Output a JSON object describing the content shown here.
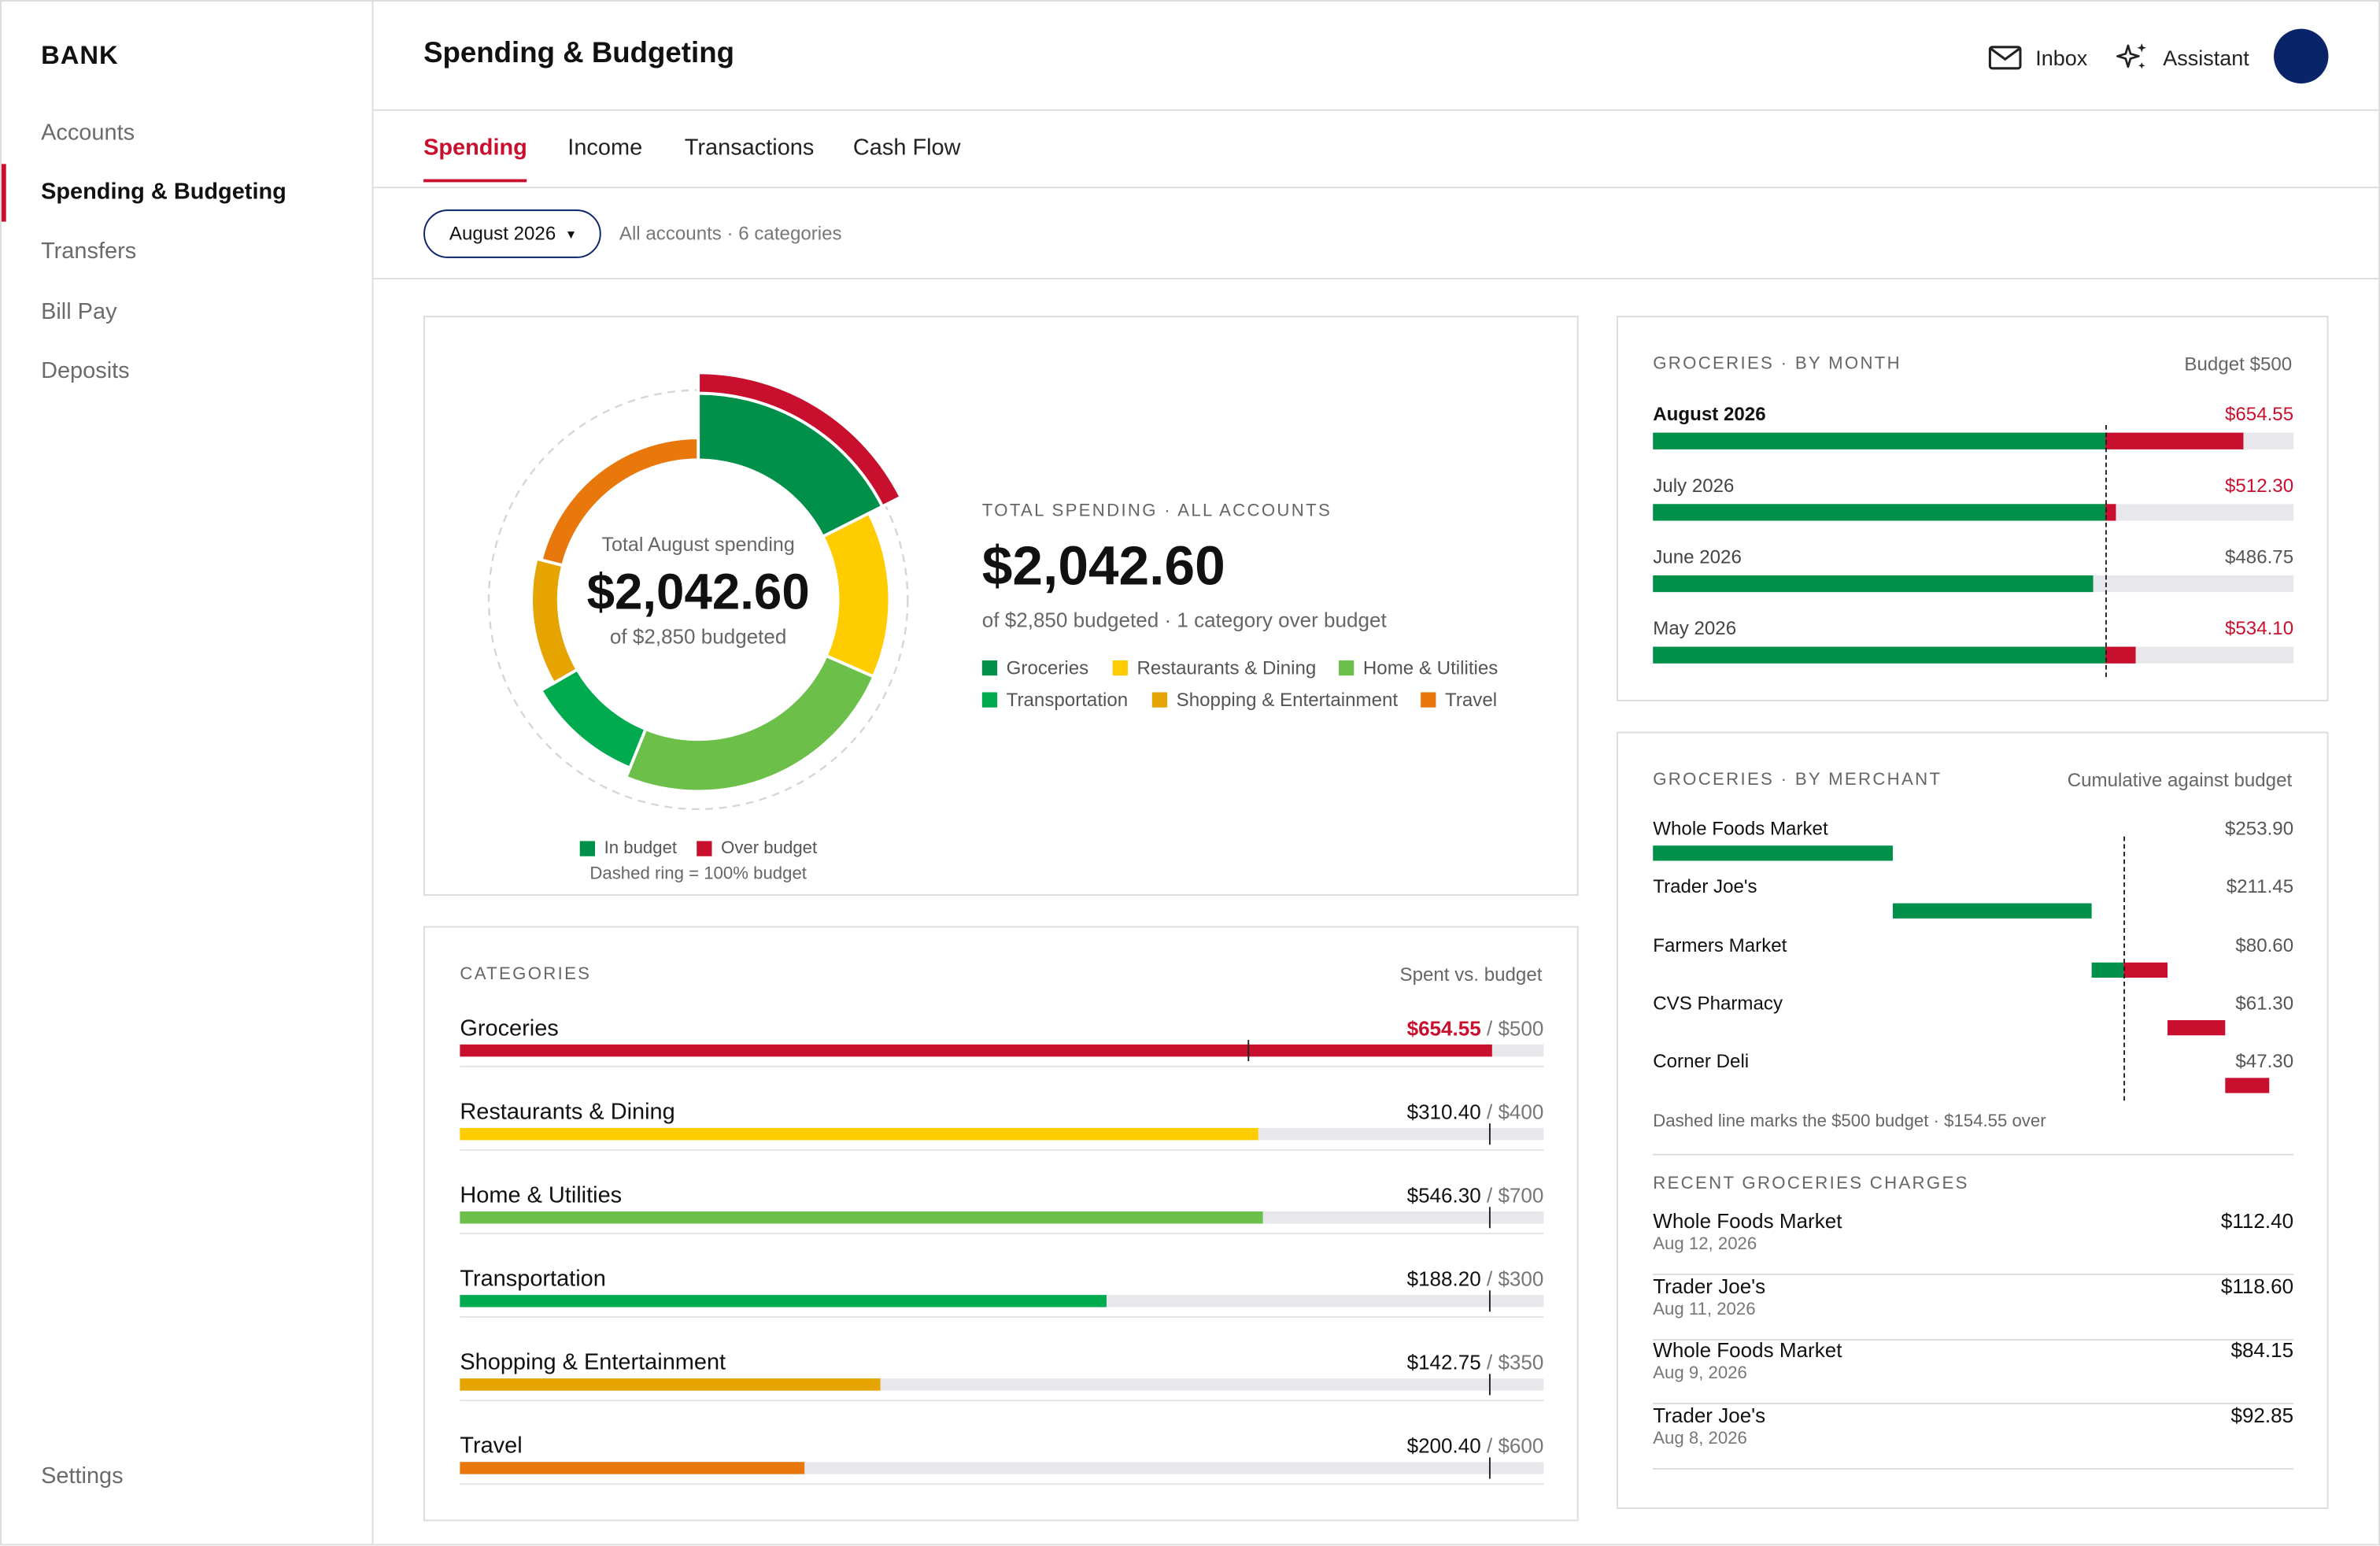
{
  "sidebar": {
    "brand": "BANK",
    "items": [
      {
        "label": "Accounts"
      },
      {
        "label": "Spending & Budgeting"
      },
      {
        "label": "Transfers"
      },
      {
        "label": "Bill Pay"
      },
      {
        "label": "Deposits"
      }
    ],
    "settings": "Settings"
  },
  "header": {
    "title": "Spending & Budgeting",
    "inbox": "Inbox",
    "assistant": "Assistant"
  },
  "tabs": [
    {
      "label": "Spending"
    },
    {
      "label": "Income"
    },
    {
      "label": "Transactions"
    },
    {
      "label": "Cash Flow"
    }
  ],
  "filter": {
    "month": "August 2026",
    "caret": "▼",
    "meta": "All accounts · 6 categories"
  },
  "donut": {
    "center_label": "Total August spending",
    "center_value": "$2,042.60",
    "center_sub": "of $2,850 budgeted",
    "legend_in": "In budget",
    "legend_over": "Over budget",
    "note": "Dashed ring = 100% budget"
  },
  "summary": {
    "label": "TOTAL SPENDING · ALL ACCOUNTS",
    "value": "$2,042.60",
    "sub": "of $2,850 budgeted · 1 category over budget"
  },
  "colors": {
    "groceries": "#00904a",
    "restaurants": "#ffcc00",
    "home": "#6cc04a",
    "transportation": "#00aa4f",
    "shopping": "#e6a400",
    "travel": "#e8780c",
    "over": "#c8102e",
    "track": "#e8e8ec"
  },
  "categories_panel": {
    "title": "CATEGORIES",
    "right": "Spent vs. budget",
    "items": [
      {
        "name": "Groceries",
        "spent": 654.55,
        "budget": 500,
        "spent_label": "$654.55",
        "budget_label": " / $500",
        "color": "#c8102e",
        "over": true
      },
      {
        "name": "Restaurants & Dining",
        "spent": 310.4,
        "budget": 400,
        "spent_label": "$310.40",
        "budget_label": " / $400",
        "color": "#ffcc00",
        "over": false
      },
      {
        "name": "Home & Utilities",
        "spent": 546.3,
        "budget": 700,
        "spent_label": "$546.30",
        "budget_label": " / $700",
        "color": "#6cc04a",
        "over": false
      },
      {
        "name": "Transportation",
        "spent": 188.2,
        "budget": 300,
        "spent_label": "$188.20",
        "budget_label": " / $300",
        "color": "#00aa4f",
        "over": false
      },
      {
        "name": "Shopping & Entertainment",
        "spent": 142.75,
        "budget": 350,
        "spent_label": "$142.75",
        "budget_label": " / $350",
        "color": "#e6a400",
        "over": false
      },
      {
        "name": "Travel",
        "spent": 200.4,
        "budget": 600,
        "spent_label": "$200.40",
        "budget_label": " / $600",
        "color": "#e8780c",
        "over": false
      }
    ]
  },
  "by_month": {
    "title": "GROCERIES · BY MONTH",
    "right": "Budget $500",
    "budget": 500,
    "max": 700,
    "items": [
      {
        "label": "August 2026",
        "value": 654.55,
        "amount": "$654.55",
        "current": true
      },
      {
        "label": "July 2026",
        "value": 512.3,
        "amount": "$512.30",
        "current": false
      },
      {
        "label": "June 2026",
        "value": 486.75,
        "amount": "$486.75",
        "current": false
      },
      {
        "label": "May 2026",
        "value": 534.1,
        "amount": "$534.10",
        "current": false
      }
    ]
  },
  "by_merchant": {
    "title": "GROCERIES · BY MERCHANT",
    "right": "Cumulative against budget",
    "budget": 500,
    "max": 700,
    "note": "Dashed line marks the $500 budget · $154.55 over",
    "items": [
      {
        "name": "Whole Foods Market",
        "value": 253.9,
        "amount": "$253.90"
      },
      {
        "name": "Trader Joe's",
        "value": 211.45,
        "amount": "$211.45"
      },
      {
        "name": "Farmers Market",
        "value": 80.6,
        "amount": "$80.60"
      },
      {
        "name": "CVS Pharmacy",
        "value": 61.3,
        "amount": "$61.30"
      },
      {
        "name": "Corner Deli",
        "value": 47.3,
        "amount": "$47.30"
      }
    ]
  },
  "recent": {
    "title": "RECENT GROCERIES CHARGES",
    "items": [
      {
        "name": "Whole Foods Market",
        "date": "Aug 12, 2026",
        "amount": "$112.40"
      },
      {
        "name": "Trader Joe's",
        "date": "Aug 11, 2026",
        "amount": "$118.60"
      },
      {
        "name": "Whole Foods Market",
        "date": "Aug 9, 2026",
        "amount": "$84.15"
      },
      {
        "name": "Trader Joe's",
        "date": "Aug 8, 2026",
        "amount": "$92.85"
      }
    ]
  },
  "chart_data": {
    "type": "pie",
    "variant": "donut-budget",
    "total": 2042.6,
    "total_budget": 2850,
    "legend": [
      "Groceries",
      "Restaurants & Dining",
      "Home & Utilities",
      "Transportation",
      "Shopping & Entertainment",
      "Travel"
    ],
    "slices": [
      {
        "name": "Groceries",
        "budget": 500,
        "spent": 654.55,
        "color": "#00904a"
      },
      {
        "name": "Restaurants & Dining",
        "budget": 400,
        "spent": 310.4,
        "color": "#ffcc00"
      },
      {
        "name": "Home & Utilities",
        "budget": 700,
        "spent": 546.3,
        "color": "#6cc04a"
      },
      {
        "name": "Transportation",
        "budget": 300,
        "spent": 188.2,
        "color": "#00aa4f"
      },
      {
        "name": "Shopping & Entertainment",
        "budget": 350,
        "spent": 142.75,
        "color": "#e6a400"
      },
      {
        "name": "Travel",
        "budget": 600,
        "spent": 200.4,
        "color": "#e8780c"
      }
    ],
    "over_color": "#c8102e"
  }
}
